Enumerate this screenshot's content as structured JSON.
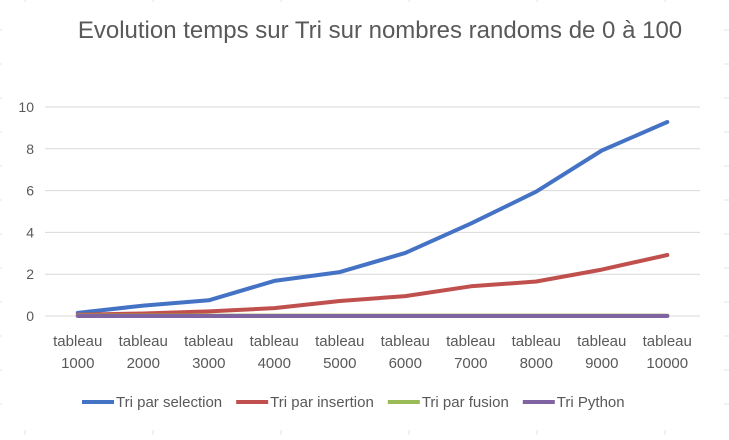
{
  "chart_data": {
    "type": "line",
    "title": "Evolution temps sur Tri sur nombres randoms de 0 à 100",
    "categories": [
      "tableau 1000",
      "tableau 2000",
      "tableau 3000",
      "tableau 4000",
      "tableau 5000",
      "tableau 6000",
      "tableau 7000",
      "tableau 8000",
      "tableau 9000",
      "tableau 10000"
    ],
    "series": [
      {
        "name": "Tri par selection",
        "color": "#4472C4",
        "values": [
          0.15,
          0.5,
          0.75,
          1.68,
          2.1,
          3.02,
          4.42,
          5.95,
          7.92,
          9.28
        ]
      },
      {
        "name": "Tri par insertion",
        "color": "#C0504D",
        "values": [
          0.06,
          0.12,
          0.22,
          0.38,
          0.72,
          0.95,
          1.42,
          1.65,
          2.22,
          2.92
        ]
      },
      {
        "name": "Tri par fusion",
        "color": "#9BBB59",
        "values": [
          0.02,
          0.02,
          0.02,
          0.02,
          0.02,
          0.02,
          0.02,
          0.02,
          0.02,
          0.02
        ]
      },
      {
        "name": "Tri Python",
        "color": "#8064A2",
        "values": [
          0.0,
          0.0,
          0.0,
          0.0,
          0.0,
          0.0,
          0.0,
          0.0,
          0.0,
          0.0
        ]
      }
    ],
    "ylim": [
      0,
      10
    ],
    "yticks": [
      0,
      2,
      4,
      6,
      8,
      10
    ],
    "xlabel": "",
    "ylabel": "",
    "grid": true,
    "legend_position": "bottom"
  }
}
